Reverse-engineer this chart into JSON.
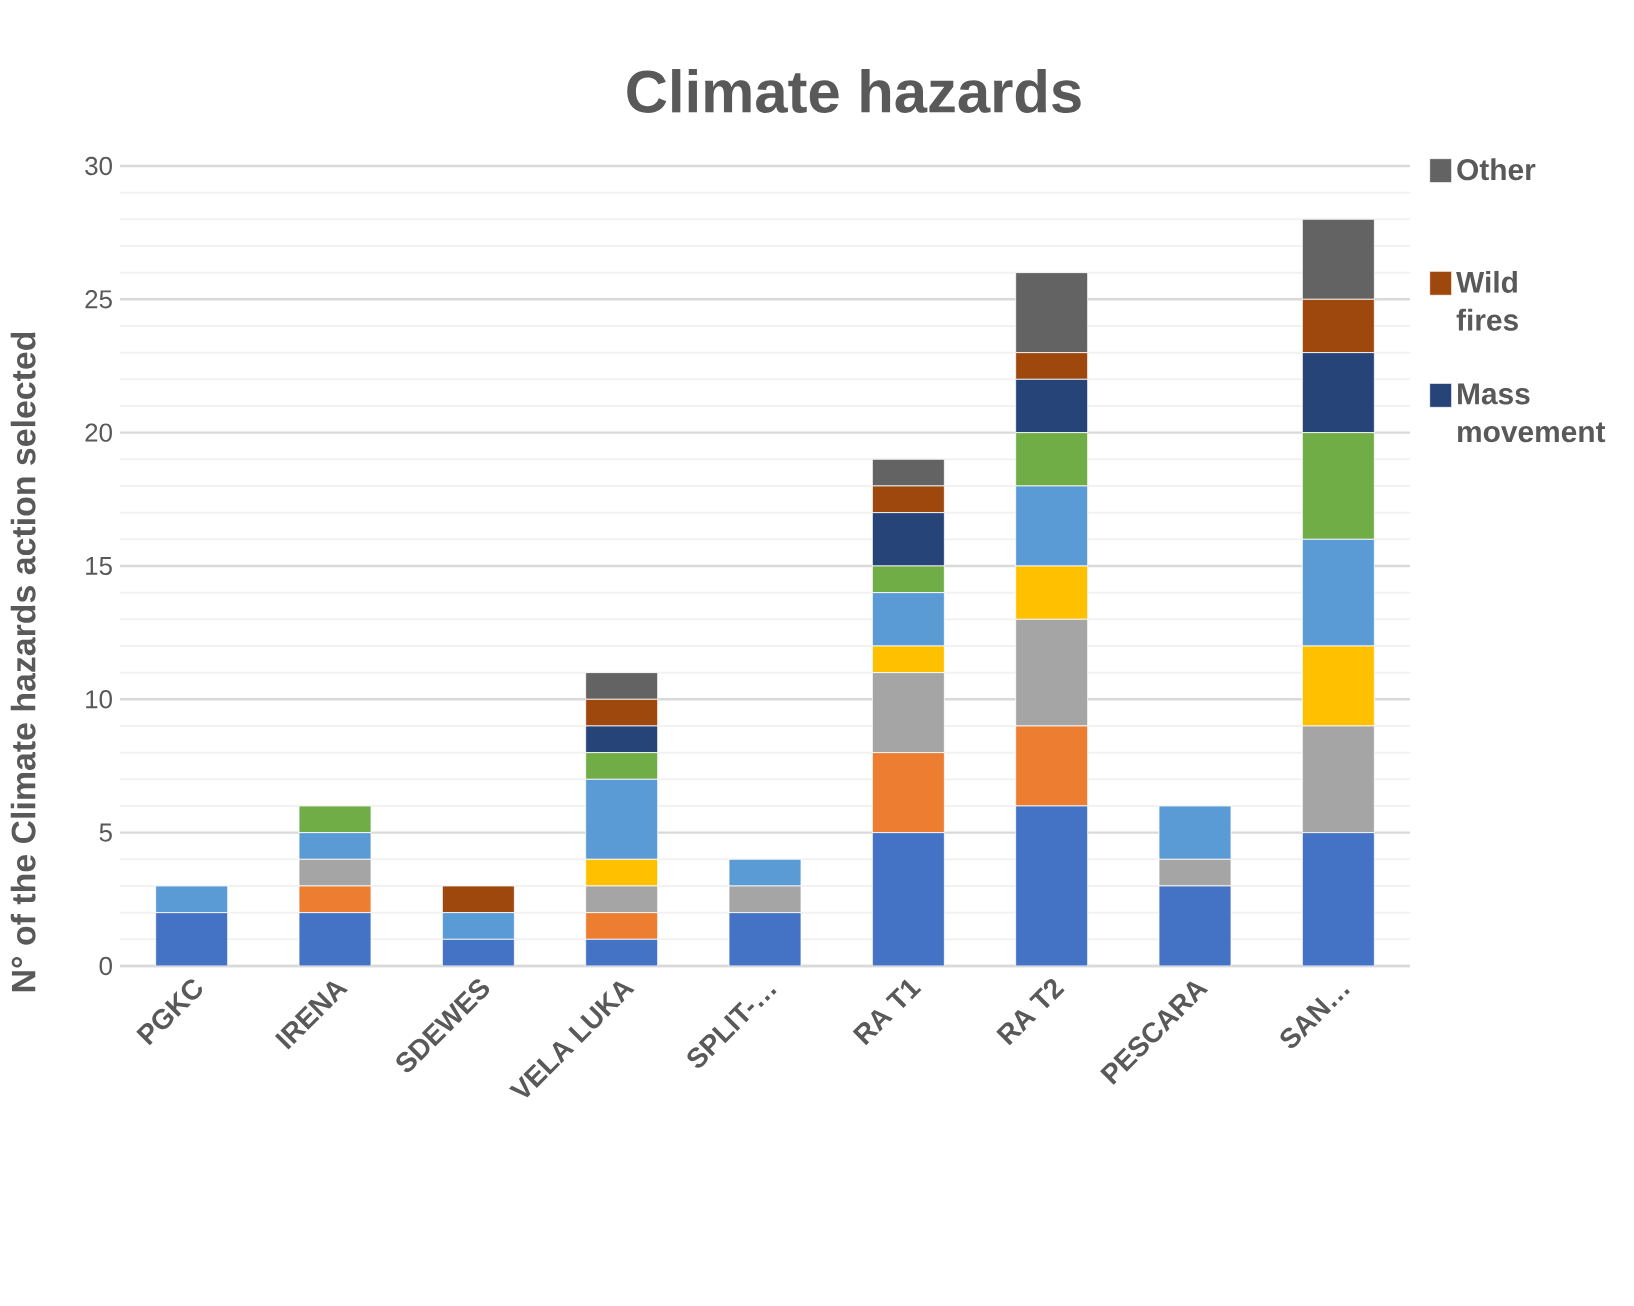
{
  "chart_data": {
    "type": "bar",
    "stacked": true,
    "title": "Climate hazards",
    "ylabel": "N° of the Climate hazards action selected",
    "categories": [
      "PGKC",
      "IRENA",
      "SDEWES",
      "VELA LUKA",
      "SPLIT-…",
      "RA T1",
      "RA T2",
      "PESCARA",
      "SAN…"
    ],
    "series": [
      {
        "color": "#4472c4",
        "values": [
          2,
          2,
          1,
          1,
          2,
          5,
          6,
          3,
          5
        ]
      },
      {
        "color": "#ed7d31",
        "values": [
          0,
          1,
          0,
          1,
          0,
          3,
          3,
          0,
          0
        ]
      },
      {
        "color": "#a5a5a5",
        "values": [
          0,
          1,
          0,
          1,
          1,
          3,
          4,
          1,
          4
        ]
      },
      {
        "color": "#ffc000",
        "values": [
          0,
          0,
          0,
          1,
          0,
          1,
          2,
          0,
          3
        ]
      },
      {
        "color": "#5b9bd5",
        "values": [
          1,
          1,
          1,
          3,
          1,
          2,
          3,
          2,
          4
        ]
      },
      {
        "color": "#70ad47",
        "values": [
          0,
          1,
          0,
          1,
          0,
          1,
          2,
          0,
          4
        ]
      },
      {
        "name": "Mass movement",
        "color": "#264478",
        "values": [
          0,
          0,
          0,
          1,
          0,
          2,
          2,
          0,
          3
        ]
      },
      {
        "name": "Wild fires",
        "color": "#9e480e",
        "values": [
          0,
          0,
          1,
          1,
          0,
          1,
          1,
          0,
          2
        ]
      },
      {
        "name": "Other",
        "color": "#636363",
        "values": [
          0,
          0,
          0,
          1,
          0,
          1,
          3,
          0,
          3
        ]
      }
    ],
    "ylim": [
      0,
      30
    ],
    "yticks": [
      0,
      5,
      10,
      15,
      20,
      25,
      30
    ],
    "grid": "y",
    "legend": "right"
  }
}
